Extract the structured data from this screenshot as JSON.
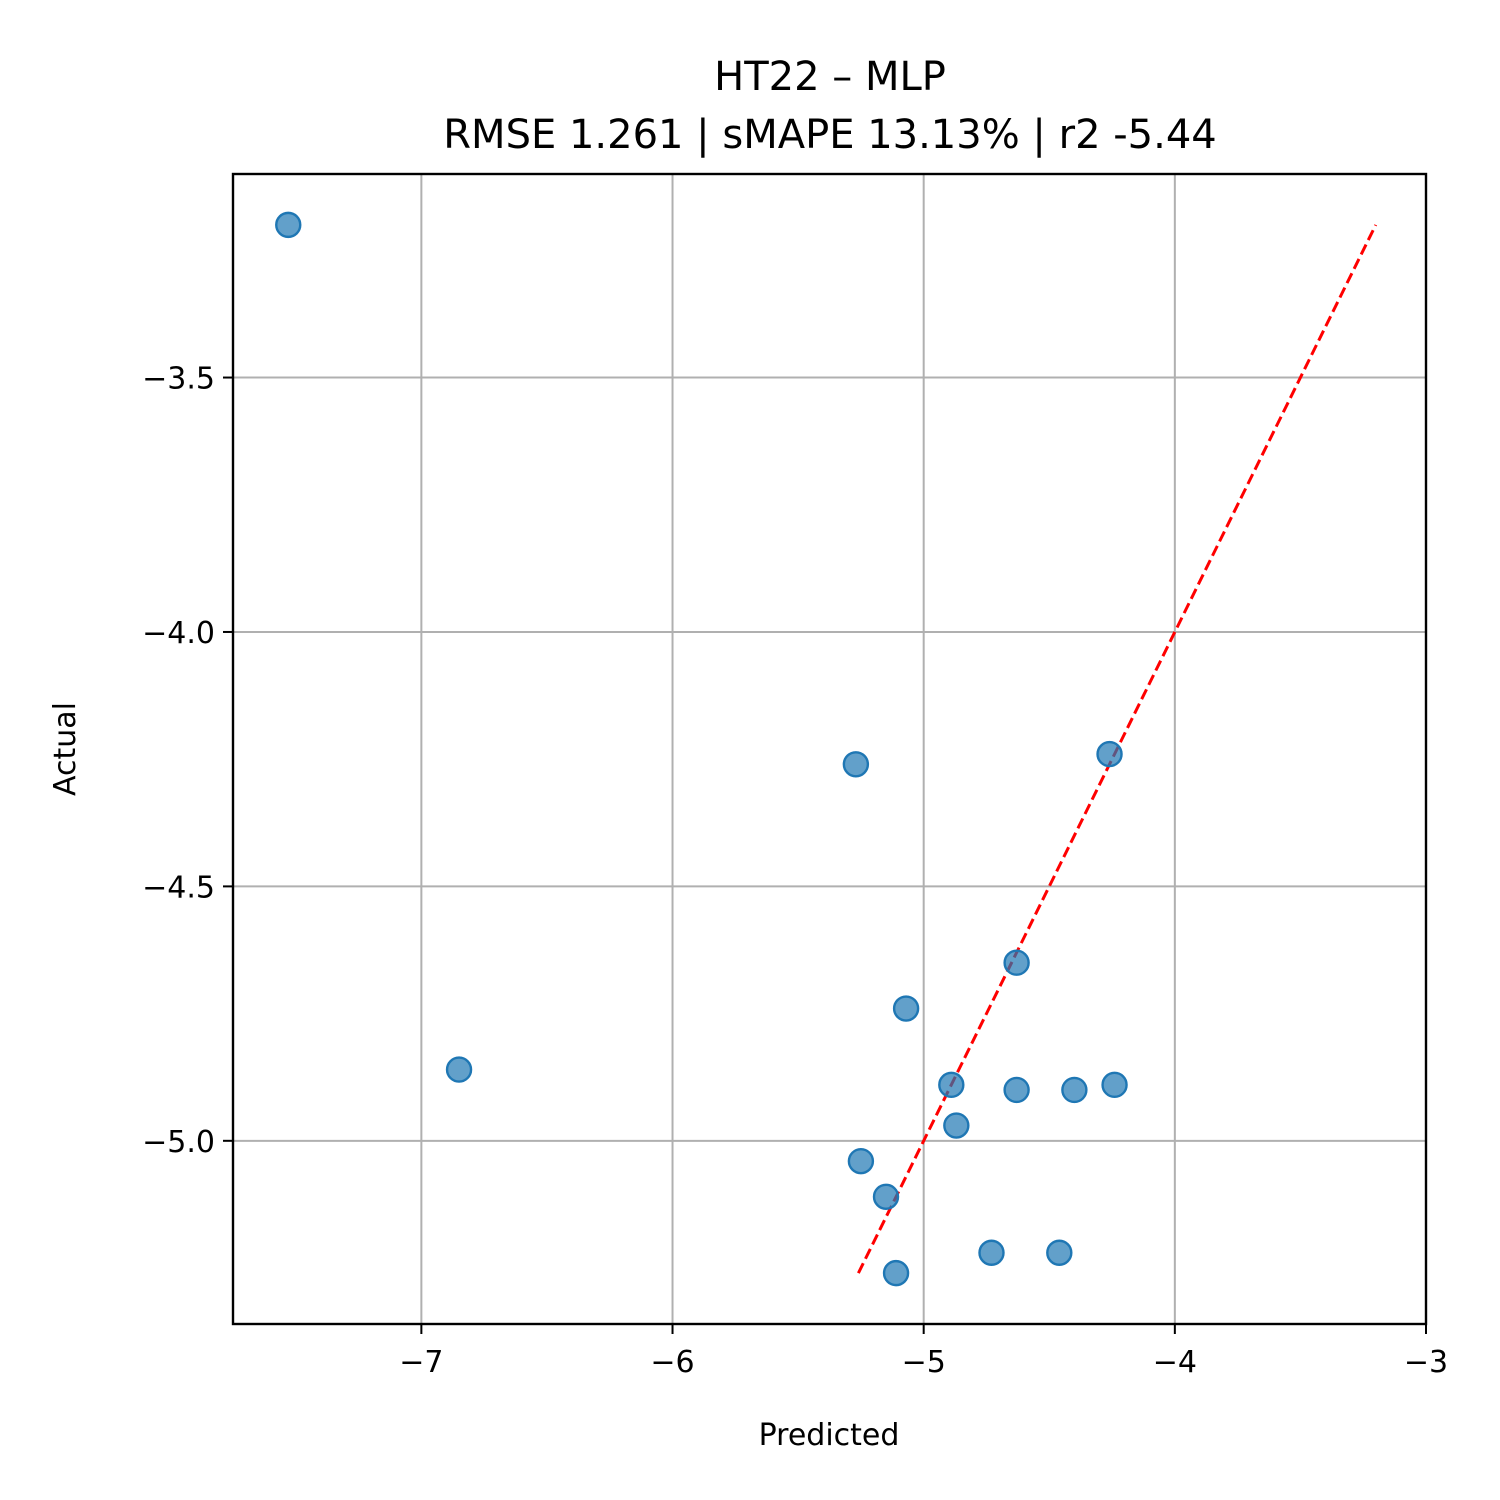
{
  "chart_data": {
    "type": "scatter",
    "title": "HT22 – MLP",
    "subtitle": "RMSE 1.261 | sMAPE 13.13%  | r2 -5.44",
    "xlabel": "Predicted",
    "ylabel": "Actual",
    "xlim": [
      -7.75,
      -3.0
    ],
    "ylim": [
      -5.36,
      -3.1
    ],
    "xticks": [
      -7,
      -6,
      -5,
      -4,
      -3
    ],
    "yticks": [
      -5.0,
      -4.5,
      -4.0,
      -3.5
    ],
    "xtick_labels": [
      "−7",
      "−6",
      "−5",
      "−4",
      "−3"
    ],
    "ytick_labels": [
      "−5.0",
      "−4.5",
      "−4.0",
      "−3.5"
    ],
    "grid": true,
    "points": [
      {
        "x": -7.53,
        "y": -3.2
      },
      {
        "x": -6.85,
        "y": -4.86
      },
      {
        "x": -5.27,
        "y": -4.26
      },
      {
        "x": -5.25,
        "y": -5.04
      },
      {
        "x": -5.15,
        "y": -5.11
      },
      {
        "x": -5.11,
        "y": -5.26
      },
      {
        "x": -5.07,
        "y": -4.74
      },
      {
        "x": -4.89,
        "y": -4.89
      },
      {
        "x": -4.87,
        "y": -4.97
      },
      {
        "x": -4.73,
        "y": -5.22
      },
      {
        "x": -4.63,
        "y": -4.65
      },
      {
        "x": -4.63,
        "y": -4.9
      },
      {
        "x": -4.46,
        "y": -5.22
      },
      {
        "x": -4.4,
        "y": -4.9
      },
      {
        "x": -4.26,
        "y": -4.24
      },
      {
        "x": -4.24,
        "y": -4.89
      }
    ],
    "identity_line": {
      "x": [
        -5.26,
        -3.2
      ],
      "y": [
        -5.26,
        -3.2
      ]
    },
    "colors": {
      "point": "#1f77b4",
      "identity_line": "#ff0000"
    }
  }
}
